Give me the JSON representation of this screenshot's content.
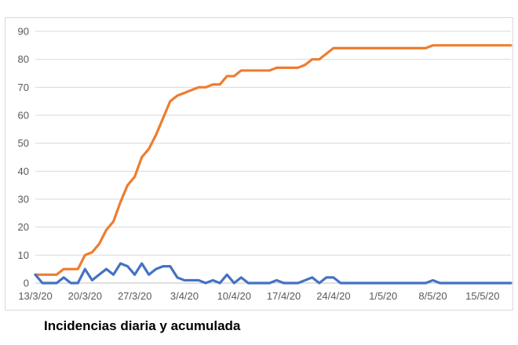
{
  "caption": "Incidencias diaria y acumulada",
  "colors": {
    "series_daily": "#4472c4",
    "series_cumulative": "#ed7d31",
    "grid": "#d9d9d9",
    "axis": "#bfbfbf"
  },
  "chart_data": {
    "type": "line",
    "title": "",
    "xlabel": "",
    "ylabel": "",
    "ylim": [
      0,
      90
    ],
    "y_ticks": [
      0,
      10,
      20,
      30,
      40,
      50,
      60,
      70,
      80,
      90
    ],
    "grid": true,
    "legend": "none",
    "x_tick_labels": [
      "13/3/20",
      "20/3/20",
      "27/3/20",
      "3/4/20",
      "10/4/20",
      "17/4/20",
      "24/4/20",
      "1/5/20",
      "8/5/20",
      "15/5/20"
    ],
    "x_tick_index": [
      0,
      7,
      14,
      21,
      28,
      35,
      42,
      49,
      56,
      63
    ],
    "series": [
      {
        "key": "cumulative",
        "values": [
          3,
          3,
          3,
          3,
          5,
          5,
          5,
          10,
          11,
          14,
          19,
          22,
          29,
          35,
          38,
          45,
          48,
          53,
          59,
          65,
          67,
          68,
          69,
          70,
          70,
          71,
          71,
          74,
          74,
          76,
          76,
          76,
          76,
          76,
          77,
          77,
          77,
          77,
          78,
          80,
          80,
          82,
          84,
          84,
          84,
          84,
          84,
          84,
          84,
          84,
          84,
          84,
          84,
          84,
          84,
          84,
          85,
          85,
          85,
          85,
          85,
          85,
          85,
          85,
          85,
          85,
          85,
          85
        ]
      },
      {
        "key": "daily",
        "values": [
          3,
          0,
          0,
          0,
          2,
          0,
          0,
          5,
          1,
          3,
          5,
          3,
          7,
          6,
          3,
          7,
          3,
          5,
          6,
          6,
          2,
          1,
          1,
          1,
          0,
          1,
          0,
          3,
          0,
          2,
          0,
          0,
          0,
          0,
          1,
          0,
          0,
          0,
          1,
          2,
          0,
          2,
          2,
          0,
          0,
          0,
          0,
          0,
          0,
          0,
          0,
          0,
          0,
          0,
          0,
          0,
          1,
          0,
          0,
          0,
          0,
          0,
          0,
          0,
          0,
          0,
          0,
          0
        ]
      }
    ]
  }
}
